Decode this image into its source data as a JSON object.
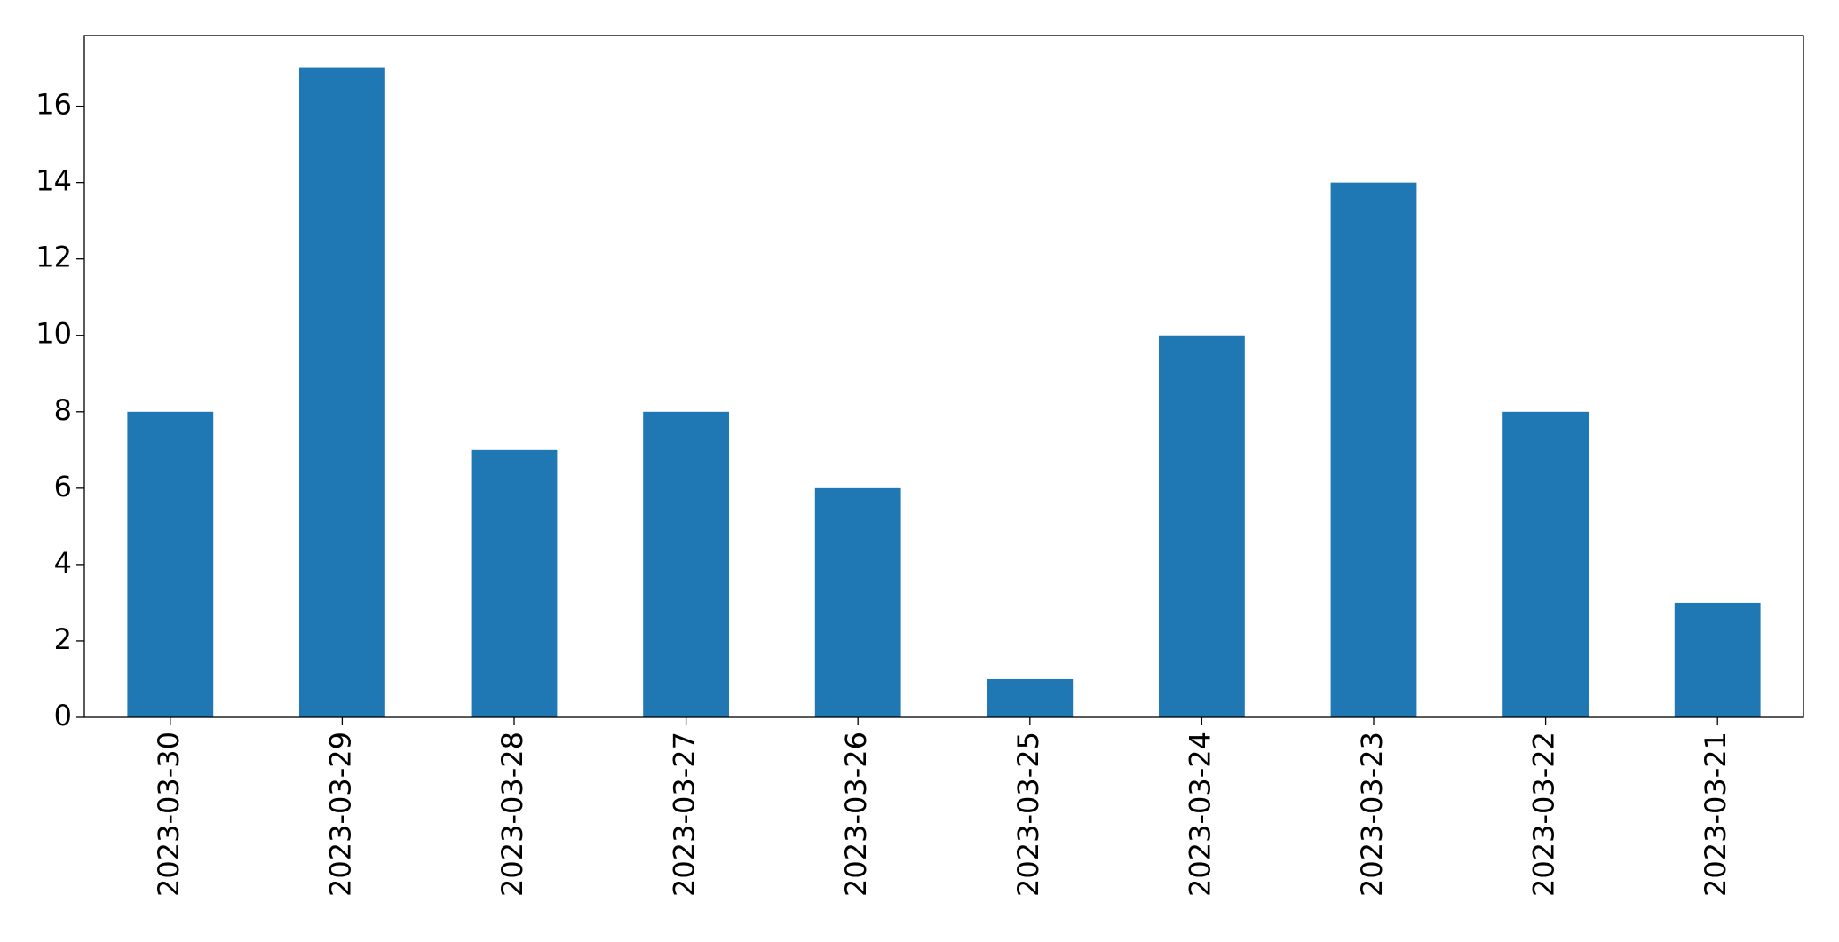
{
  "chart_data": {
    "type": "bar",
    "categories": [
      "2023-03-30",
      "2023-03-29",
      "2023-03-28",
      "2023-03-27",
      "2023-03-26",
      "2023-03-25",
      "2023-03-24",
      "2023-03-23",
      "2023-03-22",
      "2023-03-21"
    ],
    "values": [
      8,
      17,
      7,
      8,
      6,
      1,
      10,
      14,
      8,
      3
    ],
    "color": "#1f77b4",
    "ylim": [
      0,
      17.85
    ],
    "yticks": [
      0,
      2,
      4,
      6,
      8,
      10,
      12,
      14,
      16
    ],
    "grid": false
  }
}
